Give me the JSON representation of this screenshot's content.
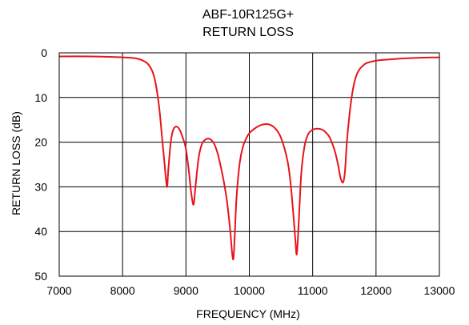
{
  "chart_data": {
    "type": "line",
    "title_lines": [
      "ABF-10R125G+",
      "RETURN LOSS"
    ],
    "xlabel": "FREQUENCY (MHz)",
    "ylabel": "RETURN LOSS (dB)",
    "xlim": [
      7000,
      13000
    ],
    "ylim": [
      0,
      50
    ],
    "y_inverted": true,
    "grid": true,
    "x_ticks": [
      7000,
      8000,
      9000,
      10000,
      11000,
      12000,
      13000
    ],
    "y_ticks": [
      0,
      10,
      20,
      30,
      40,
      50
    ],
    "series": [
      {
        "color": "#e8141c",
        "x": [
          7000,
          7500,
          7800,
          8000,
          8200,
          8300,
          8400,
          8480,
          8530,
          8580,
          8620,
          8660,
          8700,
          8720,
          8760,
          8800,
          8850,
          8900,
          8950,
          9000,
          9050,
          9080,
          9120,
          9150,
          9200,
          9250,
          9300,
          9350,
          9400,
          9450,
          9500,
          9550,
          9600,
          9650,
          9700,
          9730,
          9750,
          9770,
          9800,
          9850,
          9900,
          9950,
          10000,
          10100,
          10200,
          10300,
          10400,
          10500,
          10600,
          10650,
          10700,
          10730,
          10750,
          10780,
          10820,
          10870,
          10920,
          10970,
          11050,
          11150,
          11250,
          11300,
          11350,
          11400,
          11440,
          11480,
          11510,
          11540,
          11580,
          11620,
          11660,
          11700,
          11750,
          11800,
          11850,
          11950,
          12100,
          12500,
          13000
        ],
        "y": [
          0.8,
          0.8,
          0.9,
          1.0,
          1.2,
          1.6,
          2.5,
          4.5,
          7.5,
          12.5,
          18.5,
          24.5,
          30.0,
          26.5,
          20.0,
          17.2,
          16.5,
          17.2,
          19.0,
          21.5,
          27.0,
          31.0,
          34.0,
          30.0,
          23.5,
          20.5,
          19.5,
          19.2,
          19.5,
          20.5,
          22.5,
          25.5,
          29.0,
          33.5,
          40.0,
          45.0,
          46.0,
          41.0,
          32.0,
          24.5,
          21.0,
          19.2,
          18.0,
          16.8,
          16.1,
          16.0,
          16.8,
          19.0,
          24.0,
          29.0,
          37.0,
          42.5,
          45.0,
          38.0,
          27.0,
          21.0,
          18.5,
          17.5,
          17.0,
          17.2,
          18.5,
          20.0,
          22.0,
          25.0,
          28.0,
          29.0,
          26.5,
          20.0,
          14.0,
          9.5,
          6.5,
          4.7,
          3.5,
          2.8,
          2.3,
          1.9,
          1.6,
          1.2,
          1.0
        ]
      }
    ]
  }
}
